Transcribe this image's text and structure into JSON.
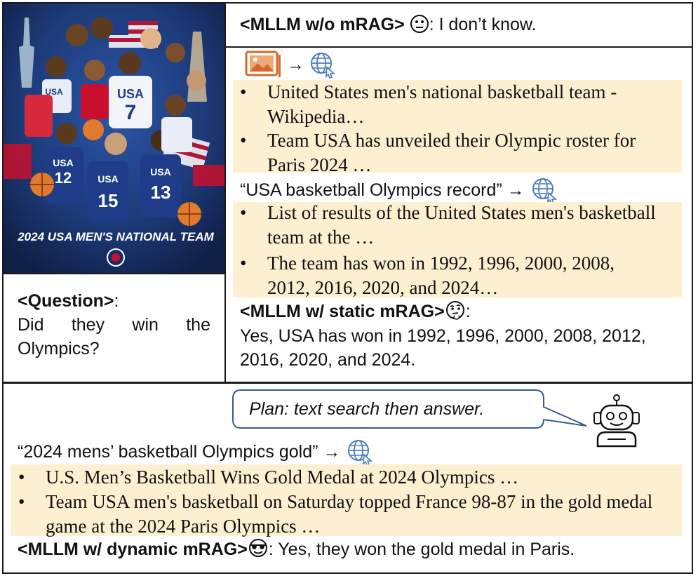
{
  "poster": {
    "jerseys": [
      "USA",
      "7",
      "USA",
      "12",
      "USA",
      "15",
      "USA",
      "13",
      "USA"
    ],
    "caption": "2024 USA MEN'S NATIONAL TEAM"
  },
  "question": {
    "label": "<Question>",
    "colon": ":",
    "text": "Did they win the Olympics?"
  },
  "no_mrag": {
    "label": "<MLLM w/o mRAG>",
    "emoji": "neutral-face",
    "answer": ": I don’t know."
  },
  "static_mrag": {
    "image_search_results": [
      "United States men's national basketball team - Wikipedia…",
      "Team USA has unveiled their Olympic roster for Paris 2024 …"
    ],
    "text_query": "“USA basketball Olympics record” →",
    "text_search_results": [
      "List of results of the United States men's basketball team at the …",
      "The team has won in 1992, 1996, 2000, 2008, 2012, 2016, 2020, and 2024…"
    ],
    "label": "<MLLM w/ static mRAG>",
    "emoji": "thinking-face",
    "colon": ":",
    "answer": "Yes, USA has won in 1992, 1996, 2000, 2008, 2012, 2016, 2020, and 2024."
  },
  "dynamic_mrag": {
    "plan": "Plan: text search then answer.",
    "text_query": "“2024 mens’ basketball Olympics gold” →",
    "results": [
      "U.S. Men’s Basketball Wins Gold Medal at 2024 Olympics …",
      "Team USA men's basketball on Saturday topped France 98-87 in the gold medal game at the 2024 Paris Olympics …"
    ],
    "label": "<MLLM w/ dynamic mRAG>",
    "emoji": "sunglasses-face",
    "answer": ": Yes, they won the gold medal in Paris."
  },
  "bullet": "•",
  "arrow": "→",
  "colors": {
    "highlight": "#fdf0d0",
    "image_icon": "#d4692a",
    "globe_icon": "#4a7cc4",
    "poster_bg": "#1d3a78",
    "plan_border": "#3a5a8c"
  }
}
